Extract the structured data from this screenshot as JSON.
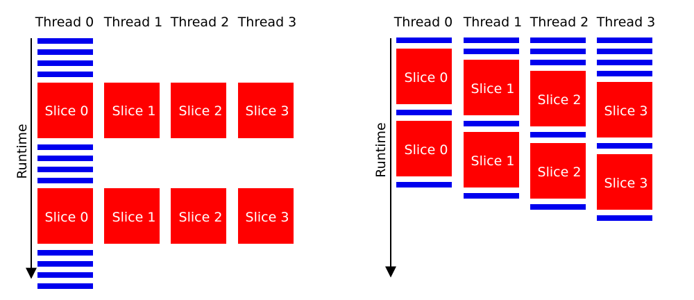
{
  "colors": {
    "slice_fill": "#ff0000",
    "barrier_fill": "#0000ee",
    "axis": "#000000",
    "slice_text": "#ffffff"
  },
  "panels": [
    {
      "id": "left",
      "axis_label": "Runtime",
      "threads": [
        {
          "header": "Thread 0",
          "slices": [
            "Slice 0",
            "Slice 0"
          ]
        },
        {
          "header": "Thread 1",
          "slices": [
            "Slice 1",
            "Slice 1"
          ]
        },
        {
          "header": "Thread 2",
          "slices": [
            "Slice 2",
            "Slice 2"
          ]
        },
        {
          "header": "Thread 3",
          "slices": [
            "Slice 3",
            "Slice 3"
          ]
        }
      ]
    },
    {
      "id": "right",
      "axis_label": "Runtime",
      "threads": [
        {
          "header": "Thread 0",
          "slices": [
            "Slice 0",
            "Slice 0"
          ]
        },
        {
          "header": "Thread 1",
          "slices": [
            "Slice 1",
            "Slice 1"
          ]
        },
        {
          "header": "Thread 2",
          "slices": [
            "Slice 2",
            "Slice 2"
          ]
        },
        {
          "header": "Thread 3",
          "slices": [
            "Slice 3",
            "Slice 3"
          ]
        }
      ]
    }
  ]
}
